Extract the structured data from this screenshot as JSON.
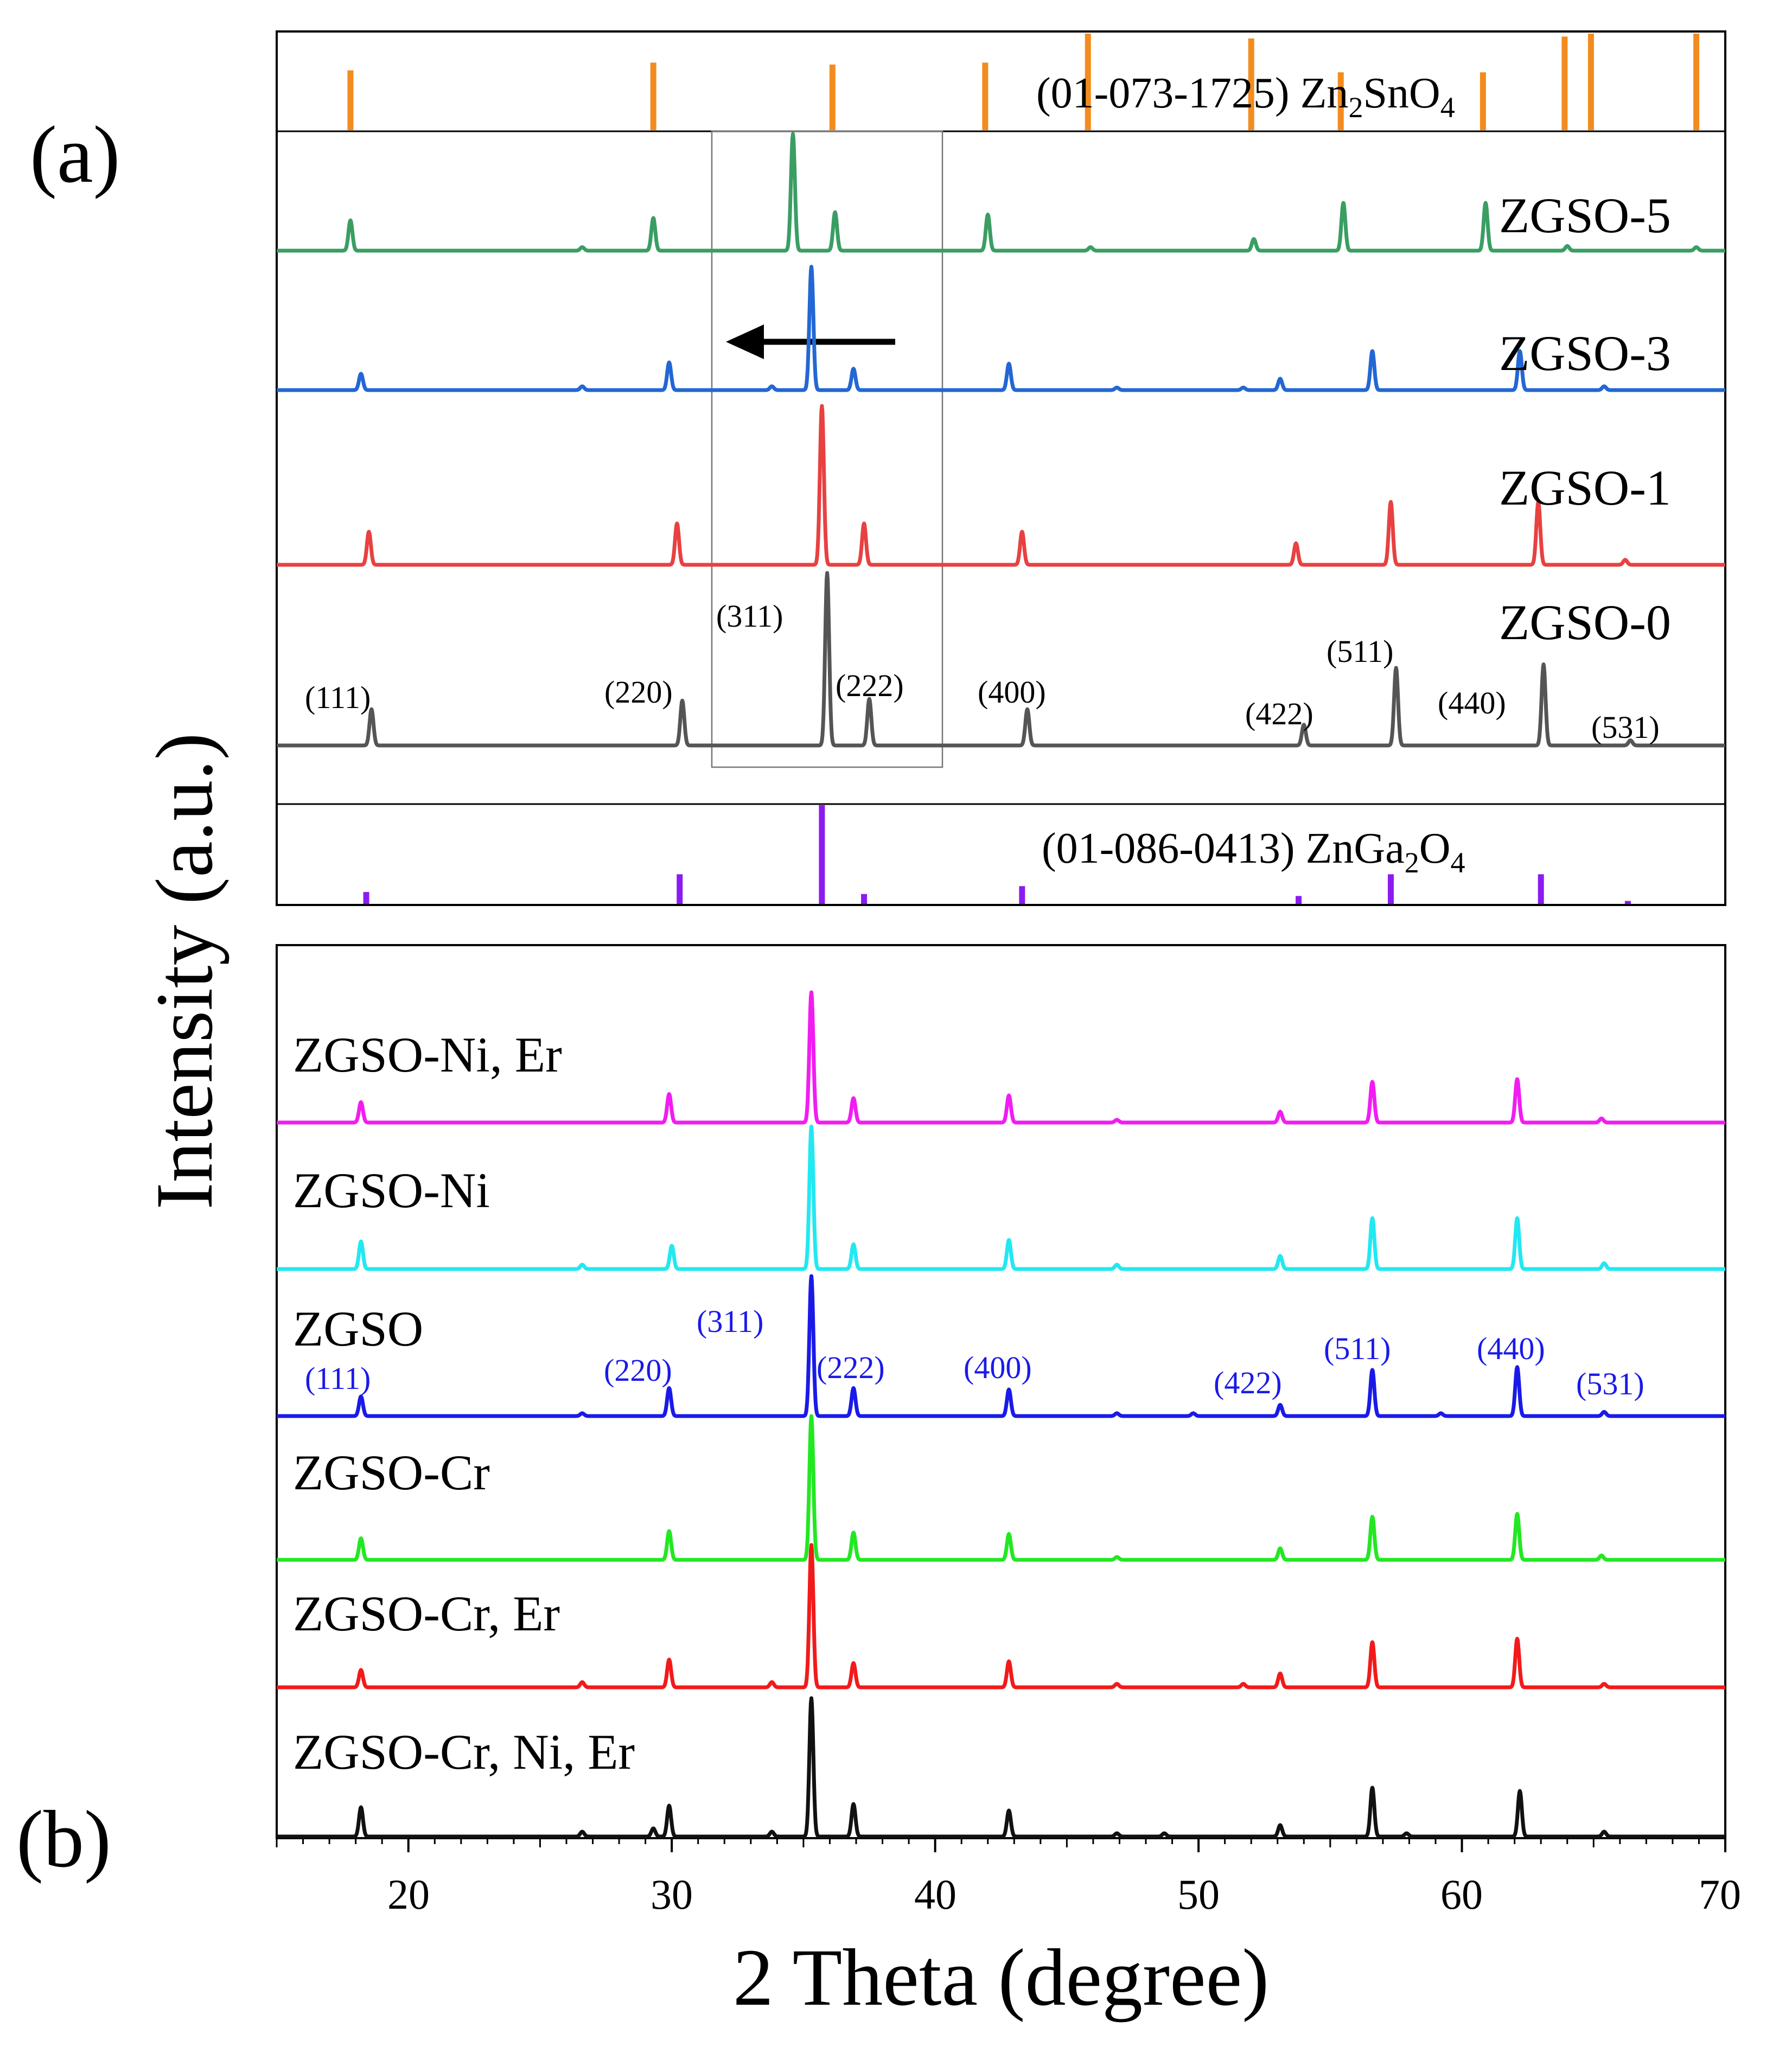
{
  "figure": {
    "panel_a_label": "(a)",
    "panel_b_label": "(b)",
    "ylabel": "Intensity (a.u.)",
    "xlabel": "2 Theta (degree)",
    "xticks": [
      "20",
      "30",
      "40",
      "50",
      "60",
      "70"
    ]
  },
  "chart_data": [
    {
      "type": "line",
      "panel": "a",
      "title": "",
      "xlabel": "2 Theta (degree)",
      "ylabel": "Intensity (a.u.)",
      "xlim": [
        15,
        70
      ],
      "references": [
        {
          "name": "(01-073-1725) Zn2SnO4",
          "label": {
            "pre": "(01-073-1725) Zn",
            "sub1": "2",
            "mid": "SnO",
            "sub2": "4"
          },
          "color": "#F28C1E",
          "peaks": [
            {
              "x": 17.8,
              "h": 0.62
            },
            {
              "x": 29.3,
              "h": 0.7
            },
            {
              "x": 36.1,
              "h": 0.68
            },
            {
              "x": 41.9,
              "h": 0.7
            },
            {
              "x": 45.8,
              "h": 1.0
            },
            {
              "x": 52.0,
              "h": 0.95
            },
            {
              "x": 55.4,
              "h": 0.6
            },
            {
              "x": 60.8,
              "h": 0.6
            },
            {
              "x": 63.9,
              "h": 0.97
            },
            {
              "x": 64.9,
              "h": 1.0
            },
            {
              "x": 68.9,
              "h": 1.0
            }
          ]
        },
        {
          "name": "(01-086-0413) ZnGa2O4",
          "label": {
            "pre": "(01-086-0413) ZnGa",
            "sub1": "2",
            "mid": "O",
            "sub2": "4"
          },
          "color": "#8B1CF0",
          "peaks": [
            {
              "x": 18.4,
              "h": 0.12
            },
            {
              "x": 30.3,
              "h": 0.3
            },
            {
              "x": 35.7,
              "h": 1.0
            },
            {
              "x": 37.3,
              "h": 0.1
            },
            {
              "x": 43.3,
              "h": 0.18
            },
            {
              "x": 53.8,
              "h": 0.08
            },
            {
              "x": 57.3,
              "h": 0.3
            },
            {
              "x": 63.0,
              "h": 0.3
            },
            {
              "x": 66.3,
              "h": 0.03
            }
          ]
        }
      ],
      "series": [
        {
          "name": "ZGSO-5",
          "color": "#3A9E63",
          "peaks": [
            [
              17.8,
              0.26
            ],
            [
              26.6,
              0.03
            ],
            [
              29.3,
              0.28
            ],
            [
              34.6,
              1.0
            ],
            [
              36.2,
              0.33
            ],
            [
              42.0,
              0.31
            ],
            [
              45.9,
              0.03
            ],
            [
              52.1,
              0.1
            ],
            [
              55.5,
              0.41
            ],
            [
              60.9,
              0.41
            ],
            [
              64.0,
              0.04
            ],
            [
              68.9,
              0.03
            ]
          ]
        },
        {
          "name": "ZGSO-3",
          "color": "#2367D4",
          "peaks": [
            [
              18.2,
              0.13
            ],
            [
              26.6,
              0.03
            ],
            [
              29.9,
              0.22
            ],
            [
              33.8,
              0.03
            ],
            [
              35.3,
              0.98
            ],
            [
              36.9,
              0.17
            ],
            [
              42.8,
              0.21
            ],
            [
              46.9,
              0.02
            ],
            [
              51.7,
              0.02
            ],
            [
              53.1,
              0.09
            ],
            [
              56.6,
              0.31
            ],
            [
              62.2,
              0.31
            ],
            [
              65.4,
              0.03
            ]
          ]
        },
        {
          "name": "ZGSO-1",
          "color": "#E84141",
          "peaks": [
            [
              18.5,
              0.2
            ],
            [
              30.2,
              0.25
            ],
            [
              35.7,
              0.96
            ],
            [
              37.3,
              0.25
            ],
            [
              43.3,
              0.2
            ],
            [
              53.7,
              0.13
            ],
            [
              57.3,
              0.38
            ],
            [
              62.9,
              0.38
            ],
            [
              66.2,
              0.03
            ]
          ]
        },
        {
          "name": "ZGSO-0",
          "color": "#555555",
          "peaks": [
            [
              18.6,
              0.21
            ],
            [
              30.4,
              0.26
            ],
            [
              35.9,
              1.0
            ],
            [
              37.5,
              0.27
            ],
            [
              43.5,
              0.21
            ],
            [
              54.0,
              0.12
            ],
            [
              57.5,
              0.45
            ],
            [
              63.1,
              0.47
            ],
            [
              66.4,
              0.03
            ]
          ]
        }
      ],
      "hkl_labels": [
        "(111)",
        "(220)",
        "(311)",
        "(222)",
        "(400)",
        "(422)",
        "(511)",
        "(440)",
        "(531)"
      ],
      "annotations": [
        "shift-box",
        "arrow-left"
      ]
    },
    {
      "type": "line",
      "panel": "b",
      "title": "",
      "xlabel": "2 Theta (degree)",
      "ylabel": "Intensity (a.u.)",
      "xlim": [
        15,
        70
      ],
      "series": [
        {
          "name": "ZGSO-Ni, Er",
          "color": "#F21CF2",
          "peaks": [
            [
              18.2,
              0.15
            ],
            [
              29.9,
              0.21
            ],
            [
              35.3,
              0.96
            ],
            [
              36.9,
              0.18
            ],
            [
              42.8,
              0.2
            ],
            [
              46.9,
              0.02
            ],
            [
              53.1,
              0.08
            ],
            [
              56.6,
              0.3
            ],
            [
              62.1,
              0.32
            ],
            [
              65.3,
              0.03
            ]
          ]
        },
        {
          "name": "ZGSO-Ni",
          "color": "#22E8F2",
          "peaks": [
            [
              18.2,
              0.19
            ],
            [
              26.6,
              0.03
            ],
            [
              30.0,
              0.16
            ],
            [
              35.3,
              0.98
            ],
            [
              36.9,
              0.17
            ],
            [
              42.8,
              0.2
            ],
            [
              46.9,
              0.03
            ],
            [
              53.1,
              0.09
            ],
            [
              56.6,
              0.35
            ],
            [
              62.1,
              0.35
            ],
            [
              65.4,
              0.04
            ]
          ]
        },
        {
          "name": "ZGSO",
          "color": "#1A1AE8",
          "peaks": [
            [
              18.2,
              0.14
            ],
            [
              26.6,
              0.02
            ],
            [
              29.9,
              0.2
            ],
            [
              35.3,
              1.0
            ],
            [
              36.9,
              0.2
            ],
            [
              42.8,
              0.19
            ],
            [
              46.9,
              0.02
            ],
            [
              49.8,
              0.02
            ],
            [
              53.1,
              0.08
            ],
            [
              56.6,
              0.33
            ],
            [
              59.2,
              0.02
            ],
            [
              62.1,
              0.35
            ],
            [
              65.4,
              0.03
            ]
          ]
        },
        {
          "name": "ZGSO-Cr",
          "color": "#22E822",
          "peaks": [
            [
              18.2,
              0.15
            ],
            [
              29.9,
              0.2
            ],
            [
              35.3,
              1.0
            ],
            [
              36.9,
              0.19
            ],
            [
              42.8,
              0.18
            ],
            [
              46.9,
              0.02
            ],
            [
              53.1,
              0.08
            ],
            [
              56.6,
              0.3
            ],
            [
              62.1,
              0.32
            ],
            [
              65.3,
              0.03
            ]
          ]
        },
        {
          "name": "ZGSO-Cr, Er",
          "color": "#F21A1A",
          "peaks": [
            [
              18.2,
              0.1
            ],
            [
              26.6,
              0.03
            ],
            [
              29.9,
              0.16
            ],
            [
              33.8,
              0.03
            ],
            [
              35.3,
              0.82
            ],
            [
              36.9,
              0.14
            ],
            [
              42.8,
              0.15
            ],
            [
              46.9,
              0.02
            ],
            [
              51.7,
              0.02
            ],
            [
              53.1,
              0.08
            ],
            [
              56.6,
              0.26
            ],
            [
              62.1,
              0.28
            ],
            [
              65.4,
              0.02
            ]
          ]
        },
        {
          "name": "ZGSO-Cr, Ni, Er",
          "color": "#111111",
          "peaks": [
            [
              18.2,
              0.18
            ],
            [
              26.6,
              0.03
            ],
            [
              29.3,
              0.05
            ],
            [
              29.9,
              0.19
            ],
            [
              33.8,
              0.03
            ],
            [
              35.3,
              0.85
            ],
            [
              36.9,
              0.2
            ],
            [
              42.8,
              0.16
            ],
            [
              46.9,
              0.02
            ],
            [
              48.7,
              0.02
            ],
            [
              53.1,
              0.07
            ],
            [
              56.6,
              0.3
            ],
            [
              57.9,
              0.02
            ],
            [
              62.2,
              0.28
            ],
            [
              65.4,
              0.03
            ]
          ]
        }
      ],
      "hkl_labels": [
        "(111)",
        "(220)",
        "(311)",
        "(222)",
        "(400)",
        "(422)",
        "(511)",
        "(440)",
        "(531)"
      ]
    }
  ]
}
